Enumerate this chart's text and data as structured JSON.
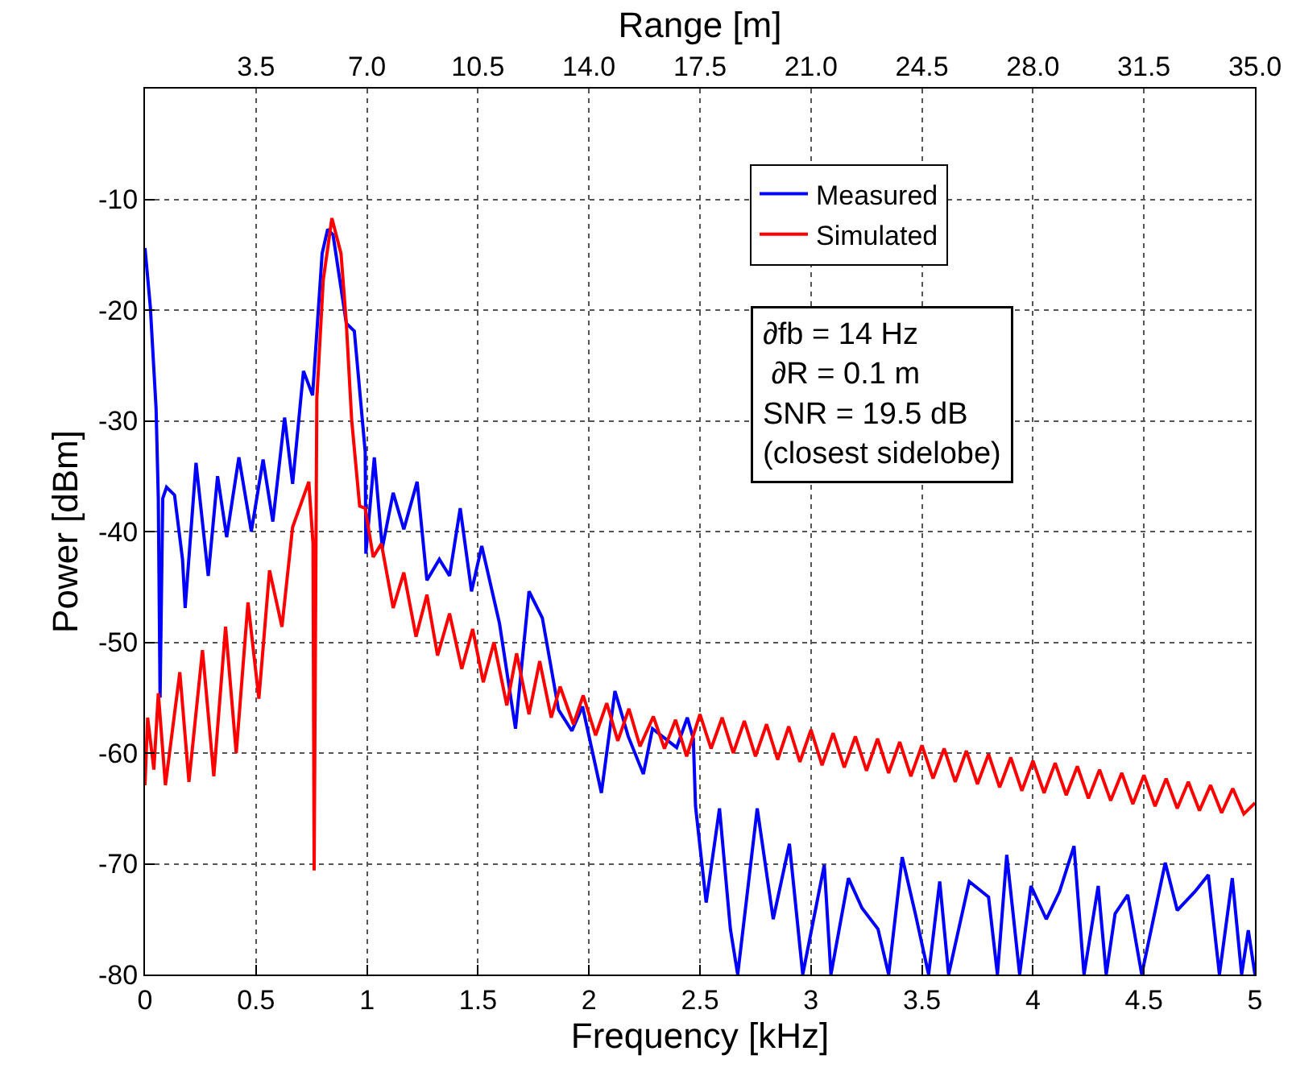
{
  "chart_data": {
    "type": "line",
    "xlabel": "Frequency [kHz]",
    "ylabel": "Power [dBm]",
    "x2label": "Range [m]",
    "xlim": [
      0,
      5
    ],
    "xticks": [
      0,
      0.5,
      1,
      1.5,
      2,
      2.5,
      3,
      3.5,
      4,
      4.5,
      5
    ],
    "ylim": [
      -80,
      0
    ],
    "yticks": [
      -80,
      -70,
      -60,
      -50,
      -40,
      -30,
      -20,
      -10
    ],
    "x2lim": [
      0,
      35
    ],
    "x2ticks": [
      3.5,
      {
        "value": 7,
        "label": "7.0"
      },
      10.5,
      {
        "value": 14,
        "label": "14.0"
      },
      17.5,
      {
        "value": 21,
        "label": "21.0"
      },
      24.5,
      {
        "value": 28,
        "label": "28.0"
      },
      31.5,
      {
        "value": 35,
        "label": "35.0"
      }
    ],
    "grid": true,
    "legend": "top right",
    "line_style": "solid",
    "annotations": [
      "∂fb = 14 Hz\n ∂R = 0.1 m\nSNR = 19.5 dB\n(closest sidelobe)"
    ],
    "series": [
      {
        "name": "Measured",
        "color": "#0000ff",
        "x": [
          0,
          0.024,
          0.05,
          0.06,
          0.068,
          0.08,
          0.097,
          0.133,
          0.169,
          0.181,
          0.23,
          0.285,
          0.327,
          0.368,
          0.423,
          0.479,
          0.532,
          0.576,
          0.629,
          0.665,
          0.714,
          0.755,
          0.798,
          0.823,
          0.847,
          0.907,
          0.943,
          0.992,
          0.995,
          1.033,
          1.069,
          1.118,
          1.166,
          1.226,
          1.27,
          1.326,
          1.372,
          1.42,
          1.471,
          1.517,
          1.597,
          1.669,
          1.73,
          1.79,
          1.863,
          1.923,
          1.971,
          2.056,
          2.117,
          2.177,
          2.245,
          2.286,
          2.395,
          2.443,
          2.47,
          2.48,
          2.528,
          2.588,
          2.637,
          2.67,
          2.758,
          2.83,
          2.903,
          2.963,
          3.06,
          3.09,
          3.169,
          3.23,
          3.302,
          3.35,
          3.411,
          3.47,
          3.53,
          3.58,
          3.62,
          3.713,
          3.8,
          3.84,
          3.882,
          3.94,
          3.991,
          4.06,
          4.12,
          4.185,
          4.23,
          4.294,
          4.33,
          4.37,
          4.427,
          4.49,
          4.596,
          4.65,
          4.73,
          4.79,
          4.84,
          4.898,
          4.94,
          4.97,
          5
        ],
        "values": [
          -14.4,
          -19.7,
          -28.9,
          -37,
          -55,
          -37,
          -36,
          -36.7,
          -42.5,
          -46.9,
          -33.8,
          -44,
          -35,
          -40.5,
          -33.3,
          -40,
          -33.5,
          -39.1,
          -29.7,
          -35.7,
          -25.5,
          -27.7,
          -14.9,
          -12.7,
          -13.2,
          -21.2,
          -21.9,
          -32.8,
          -42,
          -33.3,
          -41.5,
          -36.5,
          -39.8,
          -35.5,
          -44.4,
          -42.5,
          -44,
          -37.9,
          -45.4,
          -41.3,
          -48.3,
          -57.8,
          -45.4,
          -47.8,
          -56.1,
          -58,
          -55.8,
          -63.6,
          -54.4,
          -58.5,
          -61.9,
          -57.8,
          -59.5,
          -56.8,
          -58.7,
          -64.8,
          -73.5,
          -65,
          -75.9,
          -80,
          -65,
          -75,
          -68.2,
          -80,
          -70.1,
          -80,
          -71.3,
          -74,
          -75.9,
          -80,
          -69.4,
          -74.5,
          -80,
          -71.6,
          -80,
          -71.6,
          -73,
          -80,
          -69.2,
          -80,
          -72,
          -75,
          -72.5,
          -68.4,
          -80,
          -72,
          -80,
          -74.5,
          -72.8,
          -80,
          -69.9,
          -74.2,
          -72.5,
          -71,
          -80,
          -71.3,
          -80,
          -76,
          -80
        ]
      },
      {
        "name": "Simulated",
        "color": "#ff0000",
        "x": [
          0,
          0.012,
          0.04,
          0.06,
          0.092,
          0.157,
          0.198,
          0.259,
          0.31,
          0.363,
          0.411,
          0.464,
          0.513,
          0.561,
          0.617,
          0.665,
          0.738,
          0.757,
          0.762,
          0.774,
          0.803,
          0.842,
          0.883,
          0.907,
          0.931,
          0.967,
          0.992,
          1.028,
          1.065,
          1.118,
          1.166,
          1.221,
          1.27,
          1.318,
          1.372,
          1.427,
          1.476,
          1.524,
          1.572,
          1.63,
          1.674,
          1.73,
          1.778,
          1.83,
          1.87,
          1.93,
          1.974,
          2.03,
          2.08,
          2.13,
          2.18,
          2.23,
          2.29,
          2.34,
          2.39,
          2.44,
          2.5,
          2.55,
          2.6,
          2.65,
          2.7,
          2.75,
          2.8,
          2.85,
          2.9,
          2.95,
          3.0,
          3.05,
          3.1,
          3.15,
          3.2,
          3.25,
          3.3,
          3.35,
          3.4,
          3.45,
          3.5,
          3.55,
          3.6,
          3.65,
          3.7,
          3.75,
          3.8,
          3.85,
          3.9,
          3.95,
          4.0,
          4.05,
          4.1,
          4.15,
          4.2,
          4.25,
          4.3,
          4.35,
          4.4,
          4.45,
          4.5,
          4.55,
          4.6,
          4.65,
          4.7,
          4.75,
          4.8,
          4.85,
          4.9,
          4.95,
          5.0
        ],
        "values": [
          -62.9,
          -56.8,
          -61.5,
          -54.6,
          -62.9,
          -52.7,
          -62.6,
          -50.7,
          -62.1,
          -48.6,
          -60,
          -46.4,
          -55.1,
          -43.5,
          -48.6,
          -39.6,
          -35.5,
          -41.1,
          -70.6,
          -28,
          -17.3,
          -11.7,
          -14.9,
          -21.2,
          -29.9,
          -37.7,
          -37.9,
          -42.3,
          -41.1,
          -46.9,
          -43.7,
          -49.5,
          -45.7,
          -51.2,
          -47.4,
          -52.4,
          -48.8,
          -53.6,
          -50,
          -55.7,
          -51,
          -56.5,
          -51.7,
          -56.8,
          -54,
          -57.4,
          -54.8,
          -58.4,
          -55.5,
          -58.9,
          -56,
          -59.4,
          -56.7,
          -59.6,
          -57,
          -60.3,
          -56.5,
          -59.6,
          -56.8,
          -60,
          -57.1,
          -60.3,
          -57.4,
          -60.6,
          -57.6,
          -60.8,
          -57.9,
          -61.1,
          -58.2,
          -61.3,
          -58.5,
          -61.6,
          -58.7,
          -61.8,
          -59,
          -62.1,
          -59.3,
          -62.3,
          -59.6,
          -62.6,
          -59.8,
          -62.8,
          -60.1,
          -63.1,
          -60.4,
          -63.4,
          -60.7,
          -63.6,
          -60.9,
          -63.8,
          -61.2,
          -64.1,
          -61.5,
          -64.3,
          -61.8,
          -64.6,
          -62,
          -64.8,
          -62.3,
          -65,
          -62.6,
          -65.2,
          -62.9,
          -65.4,
          -63.2,
          -65.5,
          -64.5
        ]
      }
    ]
  }
}
